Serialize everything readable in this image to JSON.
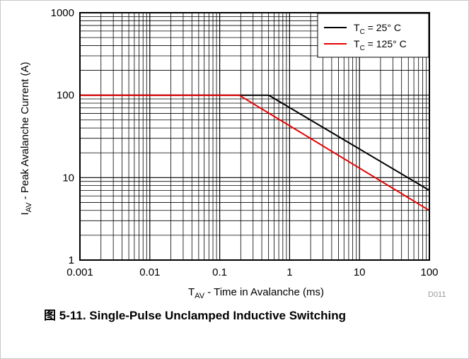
{
  "caption": {
    "prefix": "图",
    "text": "5-11. Single-Pulse Unclamped Inductive Switching"
  },
  "figure_code": "D011",
  "chart_data": {
    "type": "line",
    "x_scale": "log",
    "y_scale": "log",
    "xlim": [
      0.001,
      100
    ],
    "ylim": [
      1,
      1000
    ],
    "x_ticks": [
      "0.001",
      "0.01",
      "0.1",
      "1",
      "10",
      "100"
    ],
    "y_ticks": [
      "1",
      "10",
      "100",
      "1000"
    ],
    "xlabel": {
      "main": "T",
      "sub": "AV",
      "rest": " - Time in Avalanche (ms)"
    },
    "ylabel": {
      "main": "I",
      "sub": "AV",
      "rest": " - Peak Avalanche Current (A)"
    },
    "grid": true,
    "legend_position": "top-right",
    "series": [
      {
        "name": "T_C = 25° C",
        "legend": {
          "main": "T",
          "sub": "C",
          "rest": " = 25° C"
        },
        "color": "#000000",
        "x": [
          0.001,
          0.5,
          100
        ],
        "y": [
          100,
          100,
          7
        ]
      },
      {
        "name": "T_C = 125° C",
        "legend": {
          "main": "T",
          "sub": "C",
          "rest": " = 125° C"
        },
        "color": "#e60000",
        "x": [
          0.001,
          0.19,
          100
        ],
        "y": [
          100,
          100,
          4
        ]
      }
    ]
  }
}
